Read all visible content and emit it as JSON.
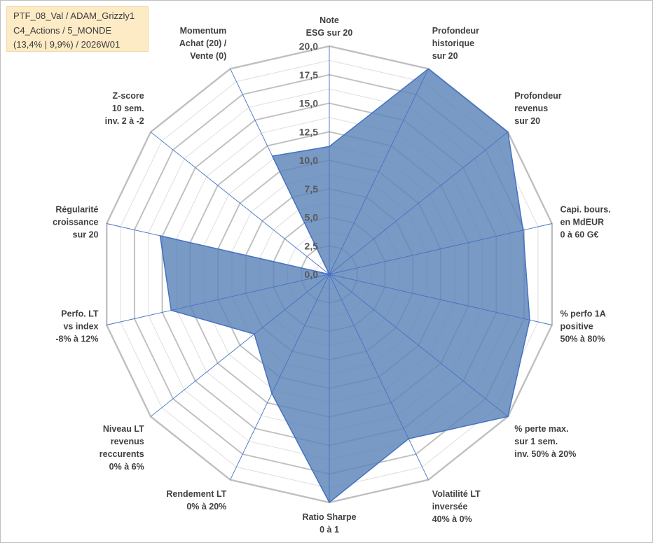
{
  "info": {
    "line1": "PTF_08_Val / ADAM_Grizzly1",
    "line2": "C4_Actions / 5_MONDE",
    "line3": "(13,4% | 9,9%) / 2026W01"
  },
  "chart_data": {
    "type": "radar",
    "title": "",
    "rmin": 0,
    "rmax": 20,
    "tick_step": 2.5,
    "minor_rings_per_step": 2,
    "tick_labels": [
      "0,0",
      "2,5",
      "5,0",
      "7,5",
      "10,0",
      "12,5",
      "15,0",
      "17,5",
      "20,0"
    ],
    "categories": [
      [
        "Note",
        "ESG sur 20"
      ],
      [
        "Profondeur",
        "historique",
        "sur 20"
      ],
      [
        "Profondeur",
        "revenus",
        "sur 20"
      ],
      [
        "Capi. bours.",
        "en MdEUR",
        "0 à 60 G€"
      ],
      [
        "% perfo 1A",
        "positive",
        "50% à 80%"
      ],
      [
        "% perte max.",
        "sur 1 sem.",
        "inv. 50% à 20%"
      ],
      [
        "Volatilité LT",
        "inversée",
        "40% à 0%"
      ],
      [
        "Ratio Sharpe",
        "0 à 1"
      ],
      [
        "Rendement LT",
        "0% à 20%"
      ],
      [
        "Niveau LT",
        "revenus",
        "reccurents",
        "0% à 6%"
      ],
      [
        "Perfo. LT",
        "vs index",
        "-8% à 12%"
      ],
      [
        "Régularité",
        "croissance",
        "sur 20"
      ],
      [
        "Z-score",
        "10 sem.",
        "inv. 2 à -2"
      ],
      [
        "Momentum",
        "Achat (20) /",
        "Vente (0)"
      ]
    ],
    "series": [
      {
        "name": "ADAM_Grizzly1",
        "values": [
          11.2,
          20,
          20,
          17.4,
          18,
          20,
          16,
          20,
          11.6,
          8.4,
          14.2,
          15.2,
          0,
          11.5
        ],
        "fill": "#5b84b8",
        "stroke": "#4472c4"
      }
    ],
    "grid": true,
    "legend": "none"
  }
}
